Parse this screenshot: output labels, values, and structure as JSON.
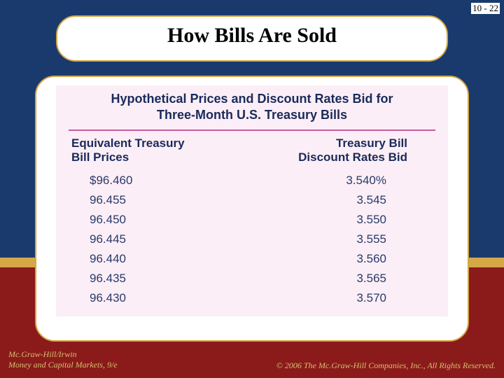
{
  "page_number": "10 - 22",
  "title": "How Bills Are Sold",
  "table": {
    "title_line1": "Hypothetical Prices and Discount Rates Bid for",
    "title_line2": "Three-Month U.S. Treasury Bills",
    "header_left_line1": "Equivalent Treasury",
    "header_left_line2": "Bill Prices",
    "header_right_line1": "Treasury Bill",
    "header_right_line2": "Discount Rates Bid",
    "rows": [
      {
        "price": "$96.460",
        "rate": "3.540%"
      },
      {
        "price": "96.455",
        "rate": "3.545"
      },
      {
        "price": "96.450",
        "rate": "3.550"
      },
      {
        "price": "96.445",
        "rate": "3.555"
      },
      {
        "price": "96.440",
        "rate": "3.560"
      },
      {
        "price": "96.435",
        "rate": "3.565"
      },
      {
        "price": "96.430",
        "rate": "3.570"
      }
    ],
    "bg_color": "#fbeef6",
    "rule_color": "#c85aa0",
    "header_color": "#1a2a5a",
    "value_color": "#2a3a6a"
  },
  "footer": {
    "publisher": "Mc.Graw-Hill/Irwin",
    "book": "Money and Capital Markets, 9/e",
    "copyright": "© 2006 The Mc.Graw-Hill Companies, Inc., All Rights Reserved."
  },
  "colors": {
    "bg_top": "#1a3a6e",
    "bg_bottom": "#8b1a1a",
    "gold": "#d4a847",
    "footer_text": "#d4c070"
  }
}
